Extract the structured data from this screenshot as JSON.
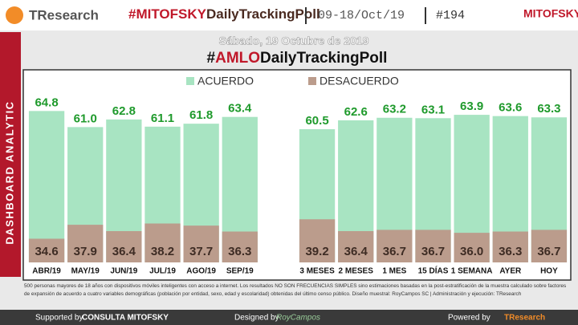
{
  "header": {
    "brand": "TResearch",
    "title": [
      "#MITOFSKY",
      "DailyTrackingPoll"
    ],
    "dates": "09-18/Oct/19",
    "number": "#194",
    "logo": "MITOFSKY"
  },
  "side_label": "DASHBOARD ANALYTIC",
  "chart_data": {
    "type": "bar",
    "subtitle": "Sábado, 19 Octubre de 2019",
    "title": [
      "#",
      "AMLO",
      "DailyTrackingPoll"
    ],
    "categories": [
      "ABR/19",
      "MAY/19",
      "JUN/19",
      "JUL/19",
      "AGO/19",
      "SEP/19",
      null,
      "3 MESES",
      "2 MESES",
      "1 MES",
      "15 DÍAS",
      "1 SEMANA",
      "AYER",
      "HOY"
    ],
    "series": [
      {
        "name": "ACUERDO",
        "color": "#a8e4c2",
        "label_color": "#1f9a2c",
        "values": [
          64.8,
          61.0,
          62.8,
          61.1,
          61.8,
          63.4,
          null,
          60.5,
          62.6,
          63.2,
          63.1,
          63.9,
          63.6,
          63.3
        ],
        "value_labels": [
          "64.8",
          "61.0",
          "62.8",
          "61.1",
          "61.8",
          "63.4",
          null,
          "60.5",
          "62.6",
          "63.2",
          "63.1",
          "63.9",
          "63.6",
          "63.3"
        ]
      },
      {
        "name": "DESACUERDO",
        "color": "#bb9c8c",
        "label_color": "#3e2c24",
        "values": [
          34.6,
          37.9,
          36.4,
          38.2,
          37.7,
          36.3,
          null,
          39.2,
          36.4,
          36.7,
          36.7,
          36.0,
          36.3,
          36.7
        ],
        "value_labels": [
          "34.6",
          "37.9",
          "36.4",
          "38.2",
          "37.7",
          "36.3",
          null,
          "39.2",
          "36.4",
          "36.7",
          "36.7",
          "36.0",
          "36.3",
          "36.7"
        ]
      }
    ],
    "ylim": [
      29,
      66
    ]
  },
  "footer": {
    "note": "500 personas mayores de 18 años con dispositivos móviles inteligentes con acceso a internet. Los resultados NO SON FRECUENCIAS SIMPLES sino estimaciones basadas en la post-estratificación de la muestra calculado sobre factores de expansión de acuerdo a cuatro variables demográficas (población por entidad, sexo, edad y escolaridad) obtenidas del último censo público. Diseño muestral: RoyCampos SC | Administración y ejecución: TResearch",
    "supported": "Supported by",
    "supporter": "CONSULTA MITOFSKY",
    "designed": "Designed by",
    "designer": "RoyCampos",
    "powered": "Powered by",
    "power": "TResearch"
  }
}
